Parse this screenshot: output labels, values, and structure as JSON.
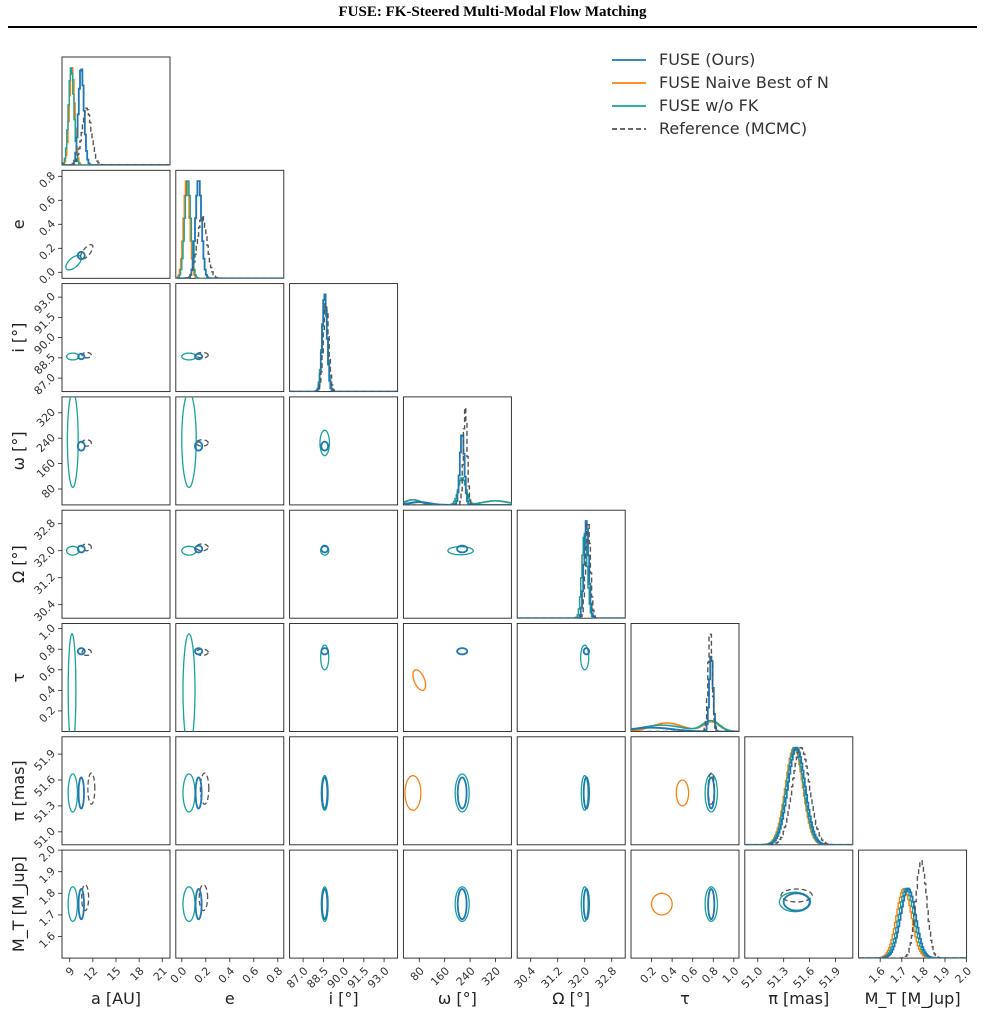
{
  "page": {
    "title": "FUSE: FK-Steered Multi-Modal Flow Matching"
  },
  "chart_data": {
    "type": "corner",
    "legend_position": "top-right",
    "series": [
      {
        "key": "ours",
        "name": "FUSE (Ours)",
        "color": "#1f77b4",
        "style": "solid"
      },
      {
        "key": "naive",
        "name": "FUSE Naive Best of N",
        "color": "#ff7f0e",
        "style": "solid"
      },
      {
        "key": "wofk",
        "name": "FUSE w/o FK",
        "color": "#17a398",
        "style": "solid"
      },
      {
        "key": "ref",
        "name": "Reference (MCMC)",
        "color": "#555555",
        "style": "dashed"
      }
    ],
    "parameters": [
      {
        "label": "a [AU]",
        "ylabel": "",
        "range": [
          8,
          22
        ],
        "ticks": [
          "9",
          "12",
          "15",
          "18",
          "21"
        ]
      },
      {
        "label": "e",
        "ylabel": "e",
        "range": [
          -0.05,
          0.85
        ],
        "ticks": [
          "0.0",
          "0.2",
          "0.4",
          "0.6",
          "0.8"
        ]
      },
      {
        "label": "i [°]",
        "ylabel": "i [°]",
        "range": [
          86,
          94
        ],
        "ticks": [
          "87.0",
          "88.5",
          "90.0",
          "91.5",
          "93.0"
        ]
      },
      {
        "label": "ω [°]",
        "ylabel": "ω [°]",
        "range": [
          30,
          370
        ],
        "ticks": [
          "80",
          "160",
          "240",
          "320"
        ]
      },
      {
        "label": "Ω [°]",
        "ylabel": "Ω [°]",
        "range": [
          30.0,
          33.2
        ],
        "ticks": [
          "30.4",
          "31.2",
          "32.0",
          "32.8"
        ]
      },
      {
        "label": "τ",
        "ylabel": "τ",
        "range": [
          0.0,
          1.05
        ],
        "ticks": [
          "0.2",
          "0.4",
          "0.6",
          "0.8",
          "1.0"
        ]
      },
      {
        "label": "π [mas]",
        "ylabel": "π [mas]",
        "range": [
          50.85,
          52.1
        ],
        "ticks": [
          "51.0",
          "51.3",
          "51.6",
          "51.9"
        ]
      },
      {
        "label": "M_T [M_Jup]",
        "ylabel": "M_T [M_Jup]",
        "range": [
          1.5,
          2.0
        ],
        "ticks": [
          "1.6",
          "1.7",
          "1.8",
          "1.9",
          "2.0"
        ]
      }
    ],
    "marginals": {
      "ours": [
        {
          "m": [
            10.5
          ],
          "s": [
            0.35
          ],
          "w": [
            1
          ]
        },
        {
          "m": [
            0.14
          ],
          "s": [
            0.025
          ],
          "w": [
            1
          ]
        },
        {
          "m": [
            88.6
          ],
          "s": [
            0.18
          ],
          "w": [
            1
          ]
        },
        {
          "m": [
            215,
            80
          ],
          "s": [
            7,
            30
          ],
          "w": [
            1,
            0.04
          ]
        },
        {
          "m": [
            32.05
          ],
          "s": [
            0.07
          ],
          "w": [
            1
          ]
        },
        {
          "m": [
            0.78,
            0.2
          ],
          "s": [
            0.018,
            0.2
          ],
          "w": [
            1,
            0.05
          ]
        },
        {
          "m": [
            51.45
          ],
          "s": [
            0.1
          ],
          "w": [
            1
          ]
        },
        {
          "m": [
            1.73
          ],
          "s": [
            0.035
          ],
          "w": [
            1
          ]
        }
      ],
      "naive": [
        {
          "m": [
            9.3
          ],
          "s": [
            0.35
          ],
          "w": [
            1
          ]
        },
        {
          "m": [
            0.04
          ],
          "s": [
            0.025
          ],
          "w": [
            1
          ]
        },
        {
          "m": [
            88.6
          ],
          "s": [
            0.2
          ],
          "w": [
            1
          ]
        },
        {
          "m": [
            215,
            60,
            320
          ],
          "s": [
            12,
            25,
            40
          ],
          "w": [
            0.8,
            0.15,
            0.12
          ]
        },
        {
          "m": [
            32.0
          ],
          "s": [
            0.08
          ],
          "w": [
            1
          ]
        },
        {
          "m": [
            0.78,
            0.35
          ],
          "s": [
            0.08,
            0.15
          ],
          "w": [
            0.25,
            0.22
          ]
        },
        {
          "m": [
            51.42
          ],
          "s": [
            0.1
          ],
          "w": [
            1
          ]
        },
        {
          "m": [
            1.71
          ],
          "s": [
            0.035
          ],
          "w": [
            1
          ]
        }
      ],
      "wofk": [
        {
          "m": [
            9.2
          ],
          "s": [
            0.35
          ],
          "w": [
            1
          ]
        },
        {
          "m": [
            0.05
          ],
          "s": [
            0.025
          ],
          "w": [
            1
          ]
        },
        {
          "m": [
            88.6
          ],
          "s": [
            0.2
          ],
          "w": [
            1
          ]
        },
        {
          "m": [
            215,
            60,
            320
          ],
          "s": [
            12,
            25,
            40
          ],
          "w": [
            0.8,
            0.15,
            0.12
          ]
        },
        {
          "m": [
            32.0
          ],
          "s": [
            0.08
          ],
          "w": [
            1
          ]
        },
        {
          "m": [
            0.78,
            0.3
          ],
          "s": [
            0.08,
            0.2
          ],
          "w": [
            0.25,
            0.15
          ]
        },
        {
          "m": [
            51.43
          ],
          "s": [
            0.1
          ],
          "w": [
            1
          ]
        },
        {
          "m": [
            1.72
          ],
          "s": [
            0.035
          ],
          "w": [
            1
          ]
        }
      ],
      "ref": [
        {
          "m": [
            11.2
          ],
          "s": [
            0.6
          ],
          "w": [
            1
          ]
        },
        {
          "m": [
            0.17
          ],
          "s": [
            0.04
          ],
          "w": [
            1
          ]
        },
        {
          "m": [
            88.7
          ],
          "s": [
            0.2
          ],
          "w": [
            1
          ]
        },
        {
          "m": [
            225
          ],
          "s": [
            6
          ],
          "w": [
            1
          ]
        },
        {
          "m": [
            32.1
          ],
          "s": [
            0.07
          ],
          "w": [
            1
          ]
        },
        {
          "m": [
            0.77
          ],
          "s": [
            0.02
          ],
          "w": [
            1
          ]
        },
        {
          "m": [
            51.5
          ],
          "s": [
            0.1
          ],
          "w": [
            1
          ]
        },
        {
          "m": [
            1.79
          ],
          "s": [
            0.025
          ],
          "w": [
            1
          ]
        }
      ]
    },
    "contours": {
      "ours": [
        [
          1,
          0,
          10.5,
          0.14,
          0.45,
          0.03,
          0.0
        ],
        [
          2,
          0,
          10.5,
          88.6,
          0.4,
          0.2,
          0.0
        ],
        [
          2,
          1,
          0.14,
          88.6,
          0.03,
          0.2,
          0.0
        ],
        [
          3,
          0,
          10.5,
          215,
          0.45,
          14,
          0.0
        ],
        [
          3,
          1,
          0.14,
          215,
          0.03,
          14,
          0.0
        ],
        [
          3,
          2,
          88.6,
          215,
          0.25,
          14,
          0.0
        ],
        [
          4,
          0,
          10.5,
          32.05,
          0.45,
          0.1,
          0.0
        ],
        [
          4,
          1,
          0.14,
          32.05,
          0.03,
          0.1,
          0.0
        ],
        [
          4,
          2,
          88.6,
          32.05,
          0.25,
          0.1,
          0.0
        ],
        [
          4,
          3,
          215,
          32.05,
          16,
          0.1,
          0.0
        ],
        [
          5,
          0,
          10.5,
          0.78,
          0.45,
          0.03,
          0.0
        ],
        [
          5,
          1,
          0.14,
          0.78,
          0.03,
          0.03,
          0.0
        ],
        [
          5,
          2,
          88.6,
          0.78,
          0.25,
          0.03,
          0.0
        ],
        [
          5,
          3,
          215,
          0.78,
          16,
          0.03,
          0.0
        ],
        [
          5,
          4,
          32.05,
          0.78,
          0.08,
          0.03,
          0.0
        ],
        [
          6,
          0,
          10.5,
          51.45,
          0.35,
          0.18,
          0.0
        ],
        [
          6,
          1,
          0.14,
          51.45,
          0.025,
          0.18,
          0.0
        ],
        [
          6,
          2,
          88.6,
          51.45,
          0.2,
          0.18,
          0.0
        ],
        [
          6,
          3,
          215,
          51.45,
          14,
          0.18,
          0.0
        ],
        [
          6,
          4,
          32.05,
          51.45,
          0.08,
          0.18,
          0.0
        ],
        [
          6,
          5,
          0.78,
          51.45,
          0.03,
          0.18,
          0.0
        ],
        [
          7,
          0,
          10.5,
          1.75,
          0.35,
          0.07,
          0.0
        ],
        [
          7,
          1,
          0.14,
          1.75,
          0.025,
          0.07,
          0.0
        ],
        [
          7,
          2,
          88.6,
          1.75,
          0.2,
          0.07,
          0.0
        ],
        [
          7,
          3,
          215,
          1.75,
          14,
          0.07,
          0.0
        ],
        [
          7,
          4,
          32.05,
          1.75,
          0.08,
          0.07,
          0.0
        ],
        [
          7,
          5,
          0.78,
          1.75,
          0.03,
          0.07,
          0.0
        ],
        [
          7,
          6,
          51.45,
          1.76,
          0.15,
          0.04,
          0.0
        ]
      ],
      "wofk": [
        [
          1,
          0,
          9.5,
          0.08,
          1.0,
          0.06,
          0.6
        ],
        [
          2,
          0,
          9.4,
          88.6,
          0.8,
          0.25,
          0.0
        ],
        [
          2,
          1,
          0.06,
          88.6,
          0.06,
          0.25,
          0.0
        ],
        [
          3,
          0,
          9.4,
          235,
          0.7,
          150,
          0.0
        ],
        [
          3,
          1,
          0.06,
          235,
          0.06,
          150,
          0.0
        ],
        [
          3,
          2,
          88.6,
          225,
          0.35,
          40,
          0.0
        ],
        [
          4,
          0,
          9.4,
          32.0,
          0.8,
          0.13,
          0.0
        ],
        [
          4,
          1,
          0.06,
          32.0,
          0.06,
          0.13,
          0.0
        ],
        [
          4,
          2,
          88.6,
          32.0,
          0.3,
          0.13,
          0.0
        ],
        [
          4,
          3,
          210,
          32.0,
          40,
          0.12,
          0.0
        ],
        [
          5,
          0,
          9.3,
          0.4,
          0.5,
          0.55,
          0.0
        ],
        [
          5,
          1,
          0.06,
          0.4,
          0.05,
          0.55,
          0.0
        ],
        [
          5,
          2,
          88.6,
          0.72,
          0.3,
          0.12,
          0.0
        ],
        [
          5,
          4,
          32.0,
          0.72,
          0.12,
          0.12,
          0.0
        ],
        [
          6,
          0,
          9.4,
          51.45,
          0.6,
          0.22,
          0.0
        ],
        [
          6,
          1,
          0.06,
          51.45,
          0.05,
          0.22,
          0.0
        ],
        [
          6,
          2,
          88.6,
          51.45,
          0.25,
          0.2,
          0.0
        ],
        [
          6,
          3,
          215,
          51.45,
          22,
          0.22,
          0.0
        ],
        [
          6,
          4,
          32.0,
          51.45,
          0.1,
          0.2,
          0.0
        ],
        [
          6,
          5,
          0.78,
          51.45,
          0.06,
          0.22,
          0.0
        ],
        [
          7,
          0,
          9.4,
          1.75,
          0.6,
          0.08,
          0.0
        ],
        [
          7,
          1,
          0.06,
          1.75,
          0.05,
          0.08,
          0.0
        ],
        [
          7,
          2,
          88.6,
          1.75,
          0.25,
          0.08,
          0.0
        ],
        [
          7,
          3,
          215,
          1.75,
          22,
          0.08,
          0.0
        ],
        [
          7,
          4,
          32.0,
          1.75,
          0.1,
          0.08,
          0.0
        ],
        [
          7,
          5,
          0.78,
          1.75,
          0.06,
          0.08,
          0.0
        ],
        [
          7,
          6,
          51.43,
          1.76,
          0.18,
          0.045,
          0.0
        ]
      ],
      "naive": [
        [
          5,
          3,
          80,
          0.5,
          20,
          0.1,
          -0.5
        ],
        [
          6,
          3,
          60,
          51.45,
          25,
          0.2,
          0.0
        ],
        [
          6,
          5,
          0.5,
          51.45,
          0.06,
          0.15,
          0.0
        ],
        [
          7,
          5,
          0.3,
          1.75,
          0.1,
          0.05,
          0.0
        ]
      ],
      "ref": [
        [
          1,
          0,
          11.2,
          0.17,
          0.8,
          0.06,
          0.7
        ],
        [
          2,
          0,
          11.2,
          88.7,
          0.6,
          0.2,
          0.0
        ],
        [
          2,
          1,
          0.17,
          88.7,
          0.05,
          0.2,
          0.0
        ],
        [
          3,
          0,
          11.2,
          225,
          0.6,
          10,
          0.0
        ],
        [
          3,
          1,
          0.17,
          225,
          0.05,
          10,
          0.0
        ],
        [
          4,
          0,
          11.2,
          32.1,
          0.6,
          0.1,
          0.0
        ],
        [
          4,
          1,
          0.17,
          32.1,
          0.05,
          0.1,
          0.0
        ],
        [
          5,
          0,
          11.2,
          0.77,
          0.6,
          0.03,
          0.0
        ],
        [
          5,
          1,
          0.17,
          0.77,
          0.05,
          0.03,
          0.0
        ],
        [
          6,
          0,
          11.8,
          51.5,
          0.45,
          0.18,
          0.0
        ],
        [
          6,
          1,
          0.19,
          51.5,
          0.035,
          0.18,
          0.0
        ],
        [
          6,
          5,
          0.78,
          51.5,
          0.03,
          0.18,
          0.0
        ],
        [
          7,
          0,
          11.0,
          1.78,
          0.45,
          0.06,
          0.0
        ],
        [
          7,
          1,
          0.18,
          1.78,
          0.035,
          0.06,
          0.0
        ],
        [
          7,
          6,
          51.45,
          1.79,
          0.18,
          0.03,
          0.0
        ]
      ]
    }
  }
}
